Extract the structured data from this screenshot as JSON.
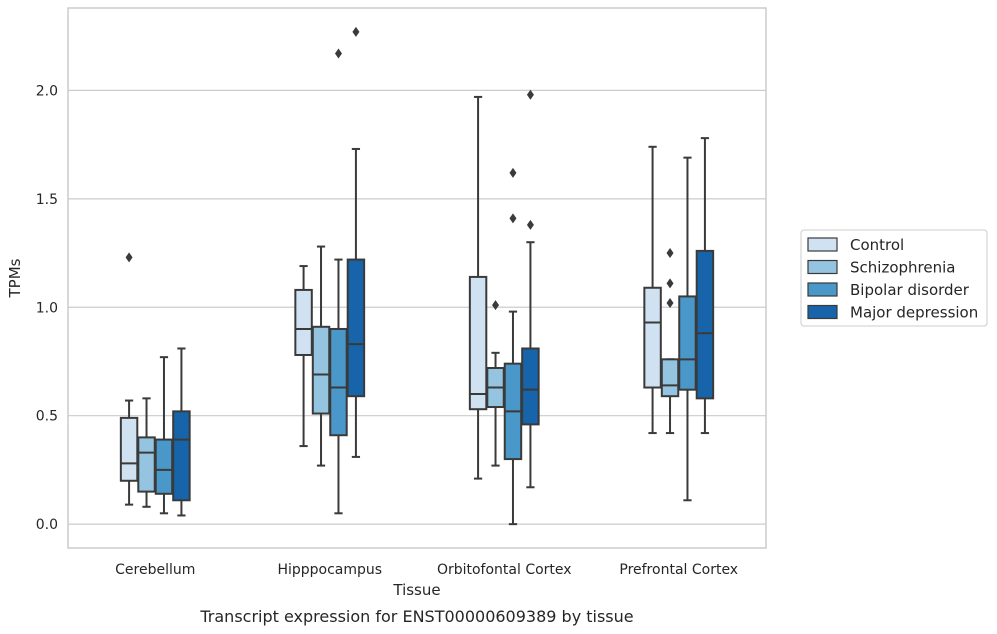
{
  "caption": "Transcript expression for ENST00000609389 by tissue",
  "chart_data": {
    "type": "box",
    "xlabel": "Tissue",
    "ylabel": "TPMs",
    "ylim": [
      -0.11,
      2.38
    ],
    "yticks": [
      "0.0",
      "0.5",
      "1.0",
      "1.5",
      "2.0"
    ],
    "grid": "horizontal",
    "legend_position": "right",
    "categories": [
      "Cerebellum",
      "Hipppocampus",
      "Orbitofontal Cortex",
      "Prefrontal Cortex"
    ],
    "series": [
      {
        "name": "Control",
        "color": "#d0e1f2",
        "boxes": [
          {
            "whislo": 0.09,
            "q1": 0.2,
            "med": 0.28,
            "q3": 0.49,
            "whishi": 0.57,
            "fliers": [
              1.23
            ]
          },
          {
            "whislo": 0.36,
            "q1": 0.78,
            "med": 0.9,
            "q3": 1.08,
            "whishi": 1.19,
            "fliers": []
          },
          {
            "whislo": 0.21,
            "q1": 0.53,
            "med": 0.6,
            "q3": 1.14,
            "whishi": 1.97,
            "fliers": []
          },
          {
            "whislo": 0.42,
            "q1": 0.63,
            "med": 0.93,
            "q3": 1.09,
            "whishi": 1.74,
            "fliers": []
          }
        ]
      },
      {
        "name": "Schizophrenia",
        "color": "#94c4df",
        "boxes": [
          {
            "whislo": 0.08,
            "q1": 0.15,
            "med": 0.33,
            "q3": 0.4,
            "whishi": 0.58,
            "fliers": []
          },
          {
            "whislo": 0.27,
            "q1": 0.51,
            "med": 0.69,
            "q3": 0.91,
            "whishi": 1.28,
            "fliers": []
          },
          {
            "whislo": 0.27,
            "q1": 0.54,
            "med": 0.63,
            "q3": 0.72,
            "whishi": 0.79,
            "fliers": [
              1.01
            ]
          },
          {
            "whislo": 0.42,
            "q1": 0.59,
            "med": 0.64,
            "q3": 0.76,
            "whishi": 0.76,
            "fliers": [
              1.02,
              1.11,
              1.25
            ]
          }
        ]
      },
      {
        "name": "Bipolar disorder",
        "color": "#4a98c9",
        "boxes": [
          {
            "whislo": 0.05,
            "q1": 0.14,
            "med": 0.25,
            "q3": 0.39,
            "whishi": 0.77,
            "fliers": []
          },
          {
            "whislo": 0.05,
            "q1": 0.41,
            "med": 0.63,
            "q3": 0.9,
            "whishi": 1.22,
            "fliers": [
              2.17
            ]
          },
          {
            "whislo": 0.0,
            "q1": 0.3,
            "med": 0.52,
            "q3": 0.74,
            "whishi": 0.98,
            "fliers": [
              1.41,
              1.62
            ]
          },
          {
            "whislo": 0.11,
            "q1": 0.62,
            "med": 0.76,
            "q3": 1.05,
            "whishi": 1.69,
            "fliers": []
          }
        ]
      },
      {
        "name": "Major depression",
        "color": "#1764ab",
        "boxes": [
          {
            "whislo": 0.04,
            "q1": 0.11,
            "med": 0.39,
            "q3": 0.52,
            "whishi": 0.81,
            "fliers": []
          },
          {
            "whislo": 0.31,
            "q1": 0.59,
            "med": 0.83,
            "q3": 1.22,
            "whishi": 1.73,
            "fliers": [
              2.27
            ]
          },
          {
            "whislo": 0.17,
            "q1": 0.46,
            "med": 0.62,
            "q3": 0.81,
            "whishi": 1.3,
            "fliers": [
              1.38,
              1.98
            ]
          },
          {
            "whislo": 0.42,
            "q1": 0.58,
            "med": 0.88,
            "q3": 1.26,
            "whishi": 1.78,
            "fliers": []
          }
        ]
      }
    ]
  }
}
